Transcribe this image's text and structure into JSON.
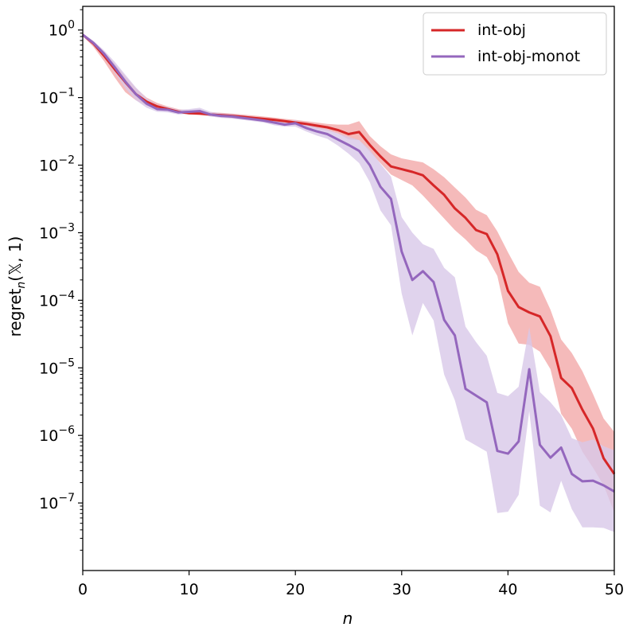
{
  "chart_data": {
    "type": "line",
    "title": "",
    "xlabel": "n",
    "ylabel": "regret_n(𝕏, 1)",
    "ylabel_parts": {
      "main": "regret",
      "sub": "n",
      "args": "(𝕏, 1)"
    },
    "xlim": [
      0,
      50
    ],
    "ylim_log10": [
      -8,
      0.35
    ],
    "yscale": "log",
    "x_ticks": [
      0,
      10,
      20,
      30,
      40,
      50
    ],
    "y_ticks": [
      {
        "exp": 0,
        "base": "10",
        "sup": "0"
      },
      {
        "exp": -1,
        "base": "10",
        "sup": "−1"
      },
      {
        "exp": -2,
        "base": "10",
        "sup": "−2"
      },
      {
        "exp": -3,
        "base": "10",
        "sup": "−3"
      },
      {
        "exp": -4,
        "base": "10",
        "sup": "−4"
      },
      {
        "exp": -5,
        "base": "10",
        "sup": "−5"
      },
      {
        "exp": -6,
        "base": "10",
        "sup": "−6"
      },
      {
        "exp": -7,
        "base": "10",
        "sup": "−7"
      }
    ],
    "grid": false,
    "legend_position": "top-right",
    "x": [
      0,
      1,
      2,
      3,
      4,
      5,
      6,
      7,
      8,
      9,
      10,
      11,
      12,
      13,
      14,
      15,
      16,
      17,
      18,
      19,
      20,
      21,
      22,
      23,
      24,
      25,
      26,
      27,
      28,
      29,
      30,
      31,
      32,
      33,
      34,
      35,
      36,
      37,
      38,
      39,
      40,
      41,
      42,
      43,
      44,
      45,
      46,
      47,
      48,
      49,
      50
    ],
    "series": [
      {
        "name": "int-obj",
        "color": "#d62728",
        "band_color": "#f2a3a3",
        "values_log10": [
          -0.07,
          -0.2,
          -0.38,
          -0.58,
          -0.77,
          -0.95,
          -1.06,
          -1.13,
          -1.17,
          -1.21,
          -1.23,
          -1.235,
          -1.25,
          -1.26,
          -1.27,
          -1.285,
          -1.3,
          -1.315,
          -1.33,
          -1.35,
          -1.37,
          -1.39,
          -1.415,
          -1.44,
          -1.48,
          -1.54,
          -1.51,
          -1.7,
          -1.87,
          -2.02,
          -2.06,
          -2.1,
          -2.15,
          -2.3,
          -2.44,
          -2.64,
          -2.78,
          -2.96,
          -3.02,
          -3.32,
          -3.86,
          -4.1,
          -4.18,
          -4.24,
          -4.53,
          -5.15,
          -5.3,
          -5.62,
          -5.9,
          -6.34,
          -6.57
        ],
        "band_upper_log10": [
          -0.06,
          -0.17,
          -0.32,
          -0.5,
          -0.68,
          -0.86,
          -1.0,
          -1.08,
          -1.13,
          -1.17,
          -1.19,
          -1.2,
          -1.215,
          -1.225,
          -1.235,
          -1.25,
          -1.265,
          -1.28,
          -1.295,
          -1.315,
          -1.33,
          -1.35,
          -1.37,
          -1.39,
          -1.4,
          -1.4,
          -1.35,
          -1.57,
          -1.72,
          -1.84,
          -1.9,
          -1.93,
          -1.96,
          -2.06,
          -2.18,
          -2.33,
          -2.48,
          -2.66,
          -2.74,
          -2.98,
          -3.29,
          -3.58,
          -3.74,
          -3.8,
          -4.14,
          -4.58,
          -4.78,
          -5.05,
          -5.39,
          -5.75,
          -5.95
        ],
        "band_lower_log10": [
          -0.09,
          -0.25,
          -0.46,
          -0.7,
          -0.92,
          -1.04,
          -1.12,
          -1.16,
          -1.19,
          -1.23,
          -1.25,
          -1.26,
          -1.275,
          -1.29,
          -1.305,
          -1.32,
          -1.335,
          -1.35,
          -1.37,
          -1.39,
          -1.41,
          -1.43,
          -1.46,
          -1.49,
          -1.53,
          -1.62,
          -1.63,
          -1.8,
          -1.97,
          -2.14,
          -2.22,
          -2.3,
          -2.45,
          -2.62,
          -2.79,
          -2.96,
          -3.1,
          -3.26,
          -3.36,
          -3.64,
          -4.34,
          -4.64,
          -4.66,
          -4.76,
          -5.02,
          -5.68,
          -5.9,
          -6.24,
          -6.48,
          -6.74,
          -7.14
        ]
      },
      {
        "name": "int-obj-monot",
        "color": "#9467bd",
        "band_color": "#d8c8e8",
        "values_log10": [
          -0.07,
          -0.19,
          -0.35,
          -0.55,
          -0.76,
          -0.95,
          -1.09,
          -1.17,
          -1.18,
          -1.22,
          -1.21,
          -1.2,
          -1.25,
          -1.27,
          -1.28,
          -1.3,
          -1.32,
          -1.34,
          -1.37,
          -1.4,
          -1.38,
          -1.45,
          -1.5,
          -1.54,
          -1.62,
          -1.7,
          -1.79,
          -2.0,
          -2.32,
          -2.5,
          -3.28,
          -3.7,
          -3.57,
          -3.73,
          -4.29,
          -4.52,
          -5.31,
          -5.41,
          -5.51,
          -6.23,
          -6.27,
          -6.09,
          -5.02,
          -6.14,
          -6.33,
          -6.18,
          -6.57,
          -6.68,
          -6.67,
          -6.74,
          -6.83
        ],
        "band_upper_log10": [
          -0.05,
          -0.16,
          -0.3,
          -0.47,
          -0.66,
          -0.85,
          -1.01,
          -1.11,
          -1.14,
          -1.18,
          -1.17,
          -1.15,
          -1.21,
          -1.23,
          -1.245,
          -1.26,
          -1.28,
          -1.3,
          -1.33,
          -1.36,
          -1.33,
          -1.4,
          -1.44,
          -1.47,
          -1.53,
          -1.58,
          -1.63,
          -1.77,
          -1.98,
          -2.17,
          -2.77,
          -3.0,
          -3.17,
          -3.24,
          -3.52,
          -3.66,
          -4.39,
          -4.62,
          -4.82,
          -5.37,
          -5.42,
          -5.28,
          -4.4,
          -5.36,
          -5.51,
          -5.7,
          -6.04,
          -6.1,
          -6.06,
          -6.16,
          -6.22
        ],
        "band_lower_log10": [
          -0.09,
          -0.22,
          -0.4,
          -0.63,
          -0.86,
          -1.04,
          -1.15,
          -1.21,
          -1.22,
          -1.25,
          -1.24,
          -1.24,
          -1.28,
          -1.3,
          -1.31,
          -1.33,
          -1.35,
          -1.37,
          -1.41,
          -1.43,
          -1.43,
          -1.5,
          -1.56,
          -1.61,
          -1.71,
          -1.83,
          -1.97,
          -2.25,
          -2.67,
          -2.89,
          -3.9,
          -4.52,
          -4.04,
          -4.3,
          -5.1,
          -5.48,
          -6.06,
          -6.15,
          -6.24,
          -7.15,
          -7.13,
          -6.88,
          -5.64,
          -7.04,
          -7.14,
          -6.67,
          -7.09,
          -7.36,
          -7.36,
          -7.37,
          -7.43
        ]
      }
    ]
  }
}
